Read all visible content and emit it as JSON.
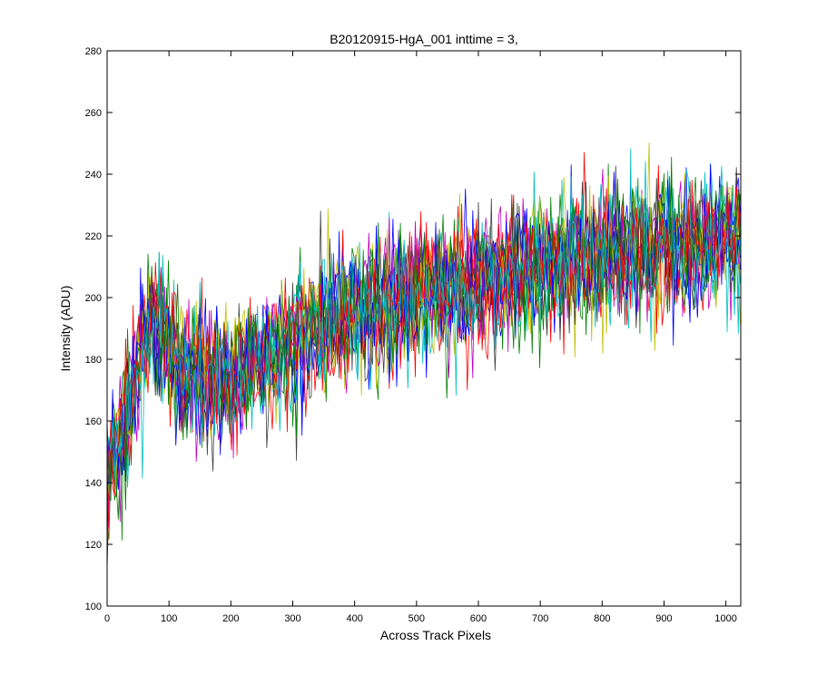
{
  "chart_data": {
    "type": "line",
    "title": "B20120915-HgA_001 inttime = 3,",
    "xlabel": "Across Track Pixels",
    "ylabel": "Intensity (ADU)",
    "xlim": [
      0,
      1024
    ],
    "ylim": [
      100,
      280
    ],
    "xticks": [
      0,
      100,
      200,
      300,
      400,
      500,
      600,
      700,
      800,
      900,
      1000
    ],
    "yticks": [
      100,
      120,
      140,
      160,
      180,
      200,
      220,
      240,
      260,
      280
    ],
    "grid": false,
    "legend": "none",
    "trend": {
      "description": "many noisy overlaid traces, rising trend",
      "x": [
        0,
        10,
        20,
        30,
        40,
        50,
        60,
        70,
        80,
        90,
        100,
        120,
        150,
        200,
        250,
        300,
        350,
        400,
        450,
        500,
        550,
        600,
        650,
        700,
        750,
        800,
        850,
        900,
        950,
        1000,
        1024
      ],
      "y": [
        142,
        148,
        155,
        162,
        168,
        178,
        186,
        190,
        192,
        190,
        184,
        176,
        172,
        175,
        180,
        186,
        191,
        195,
        198,
        200,
        203,
        206,
        208,
        210,
        212,
        213,
        215,
        216,
        217,
        218,
        219
      ],
      "noise_amplitude": 14
    },
    "series": [
      {
        "color": "#0000ff"
      },
      {
        "color": "#008000"
      },
      {
        "color": "#ff0000"
      },
      {
        "color": "#00bfbf"
      },
      {
        "color": "#bf00bf"
      },
      {
        "color": "#bfbf00"
      },
      {
        "color": "#404040"
      },
      {
        "color": "#0000ff"
      },
      {
        "color": "#008000"
      },
      {
        "color": "#ff0000"
      },
      {
        "color": "#00bfbf"
      },
      {
        "color": "#bf00bf"
      },
      {
        "color": "#bfbf00"
      },
      {
        "color": "#404040"
      },
      {
        "color": "#0000ff"
      },
      {
        "color": "#008000"
      },
      {
        "color": "#ff0000"
      },
      {
        "color": "#00bfbf"
      }
    ]
  }
}
